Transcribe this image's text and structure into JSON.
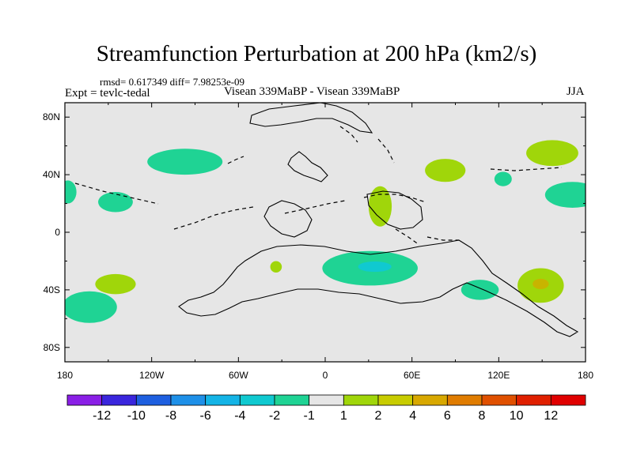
{
  "title": "Streamfunction Perturbation at 200 hPa (km2/s)",
  "stats": "rmsd= 0.617349 diff= 7.98253e-09",
  "expt": "Expt = tevlc-tedal",
  "subtitle": "Visean 339MaBP - Visean 339MaBP",
  "season": "JJA",
  "colors": {
    "background": "#ffffff",
    "map_fill": "#e6e6e6",
    "neg1": "#1fd394",
    "neg2": "#10c9d0",
    "pos1": "#a0d60a",
    "pos2": "#c8b400"
  },
  "chart_data": {
    "type": "contour-map",
    "projection": "cylindrical equidistant",
    "lon_range": [
      -180,
      180
    ],
    "lat_range": [
      -90,
      90
    ],
    "x_ticks": [
      {
        "lon": -180,
        "label": "180"
      },
      {
        "lon": -120,
        "label": "120W"
      },
      {
        "lon": -60,
        "label": "60W"
      },
      {
        "lon": 0,
        "label": "0"
      },
      {
        "lon": 60,
        "label": "60E"
      },
      {
        "lon": 120,
        "label": "120E"
      },
      {
        "lon": 180,
        "label": "180"
      }
    ],
    "y_ticks": [
      {
        "lat": 80,
        "label": "80N"
      },
      {
        "lat": 40,
        "label": "40N"
      },
      {
        "lat": 0,
        "label": "0"
      },
      {
        "lat": -40,
        "label": "40S"
      },
      {
        "lat": -80,
        "label": "80S"
      }
    ],
    "colorbar": {
      "levels": [
        -12,
        -10,
        -8,
        -6,
        -4,
        -2,
        -1,
        1,
        2,
        4,
        6,
        8,
        10,
        12
      ],
      "labels": [
        "-12",
        "-10",
        "-8",
        "-6",
        "-4",
        "-2",
        "-1",
        "1",
        "2",
        "4",
        "6",
        "8",
        "10",
        "12"
      ],
      "colors": [
        "#8a1fe6",
        "#3a26dd",
        "#1e5fe0",
        "#1e90e8",
        "#14b4e6",
        "#10c9d0",
        "#1fd394",
        "#e6e6e6",
        "#a0d60a",
        "#c8cc00",
        "#d8a800",
        "#e07c00",
        "#e05000",
        "#e02000",
        "#e00000"
      ]
    },
    "anomalies": [
      {
        "lon": -97,
        "lat": 49,
        "rlon": 26,
        "rlat": 9,
        "sign": "negative",
        "class": "-2 to -1"
      },
      {
        "lon": -178,
        "lat": 28,
        "rlon": 6,
        "rlat": 8,
        "sign": "negative",
        "class": "-2 to -1"
      },
      {
        "lon": -145,
        "lat": 21,
        "rlon": 12,
        "rlat": 7,
        "sign": "negative",
        "class": "-2 to -1"
      },
      {
        "lon": -145,
        "lat": -36,
        "rlon": 14,
        "rlat": 7,
        "sign": "positive",
        "class": "1 to 2"
      },
      {
        "lon": -163,
        "lat": -52,
        "rlon": 19,
        "rlat": 11,
        "sign": "negative",
        "class": "-2 to -1"
      },
      {
        "lon": -34,
        "lat": -24,
        "rlon": 4,
        "rlat": 4,
        "sign": "positive",
        "class": "1 to 2"
      },
      {
        "lon": 31,
        "lat": -25,
        "rlon": 33,
        "rlat": 12,
        "sign": "negative",
        "class": "-4 to -2 core"
      },
      {
        "lon": 38,
        "lat": 18,
        "rlon": 8,
        "rlat": 14,
        "sign": "positive",
        "class": "1 to 2"
      },
      {
        "lon": 83,
        "lat": 43,
        "rlon": 14,
        "rlat": 8,
        "sign": "positive",
        "class": "1 to 2"
      },
      {
        "lon": 123,
        "lat": 37,
        "rlon": 6,
        "rlat": 5,
        "sign": "negative",
        "class": "-2 to -1"
      },
      {
        "lon": 157,
        "lat": 55,
        "rlon": 18,
        "rlat": 9,
        "sign": "positive",
        "class": "1 to 2"
      },
      {
        "lon": 171,
        "lat": 26,
        "rlon": 19,
        "rlat": 9,
        "sign": "negative",
        "class": "-2 to -1"
      },
      {
        "lon": 107,
        "lat": -40,
        "rlon": 13,
        "rlat": 7,
        "sign": "negative",
        "class": "-2 to -1"
      },
      {
        "lon": 149,
        "lat": -37,
        "rlon": 16,
        "rlat": 12,
        "sign": "positive",
        "class": "2 to 4 core"
      }
    ]
  }
}
